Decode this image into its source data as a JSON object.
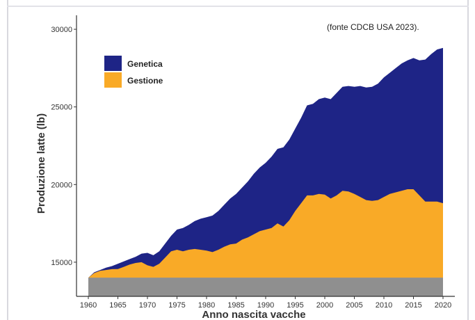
{
  "chart_data": {
    "type": "area",
    "source_note": "(fonte CDCB USA 2023).",
    "xlabel": "Anno nascita vacche",
    "ylabel": "Produzione latte (lb)",
    "xlim": [
      1958,
      2022
    ],
    "ylim": [
      12800,
      30900
    ],
    "x_ticks": [
      1960,
      1965,
      1970,
      1975,
      1980,
      1985,
      1990,
      1995,
      2000,
      2005,
      2010,
      2015,
      2020
    ],
    "x_tick_labels": [
      "1960",
      "1965",
      "1970",
      "1975",
      "1980",
      "1985",
      "1990",
      "1995",
      "2000",
      "2005",
      "2010",
      "2015",
      "2020"
    ],
    "y_ticks": [
      15000,
      20000,
      25000,
      30000
    ],
    "y_tick_labels": [
      "15000",
      "20000",
      "25000",
      "30000"
    ],
    "legend_position": "top-left",
    "base_value": 14000,
    "base_color": "#8f8f8f",
    "years": [
      1960,
      1961,
      1962,
      1963,
      1964,
      1965,
      1966,
      1967,
      1968,
      1969,
      1970,
      1971,
      1972,
      1973,
      1974,
      1975,
      1976,
      1977,
      1978,
      1979,
      1980,
      1981,
      1982,
      1983,
      1984,
      1985,
      1986,
      1987,
      1988,
      1989,
      1990,
      1991,
      1992,
      1993,
      1994,
      1995,
      1996,
      1997,
      1998,
      1999,
      2000,
      2001,
      2002,
      2003,
      2004,
      2005,
      2006,
      2007,
      2008,
      2009,
      2010,
      2011,
      2012,
      2013,
      2014,
      2015,
      2016,
      2017,
      2018,
      2019,
      2020
    ],
    "series": [
      {
        "name": "Gestione",
        "color": "#f9aa27",
        "values": [
          14000,
          14300,
          14450,
          14500,
          14550,
          14560,
          14700,
          14850,
          14950,
          15000,
          14800,
          14700,
          14900,
          15300,
          15700,
          15800,
          15700,
          15800,
          15850,
          15800,
          15750,
          15650,
          15800,
          16000,
          16150,
          16200,
          16450,
          16600,
          16800,
          17000,
          17100,
          17200,
          17500,
          17300,
          17700,
          18300,
          18800,
          19300,
          19300,
          19400,
          19350,
          19100,
          19300,
          19600,
          19550,
          19400,
          19200,
          19000,
          18950,
          19000,
          19200,
          19400,
          19500,
          19600,
          19700,
          19700,
          19300,
          18900,
          18900,
          18900,
          18800
        ]
      },
      {
        "name": "Genetica",
        "color": "#1e2486",
        "values": [
          14000,
          14350,
          14500,
          14650,
          14750,
          14900,
          15050,
          15200,
          15350,
          15550,
          15600,
          15450,
          15700,
          16200,
          16700,
          17100,
          17200,
          17400,
          17650,
          17800,
          17900,
          18000,
          18300,
          18700,
          19100,
          19400,
          19800,
          20200,
          20700,
          21100,
          21400,
          21800,
          22300,
          22400,
          22900,
          23600,
          24300,
          25100,
          25200,
          25500,
          25600,
          25500,
          25900,
          26300,
          26350,
          26300,
          26350,
          26250,
          26300,
          26500,
          26900,
          27200,
          27500,
          27800,
          28000,
          28150,
          28000,
          28050,
          28400,
          28700,
          28800
        ]
      }
    ]
  }
}
